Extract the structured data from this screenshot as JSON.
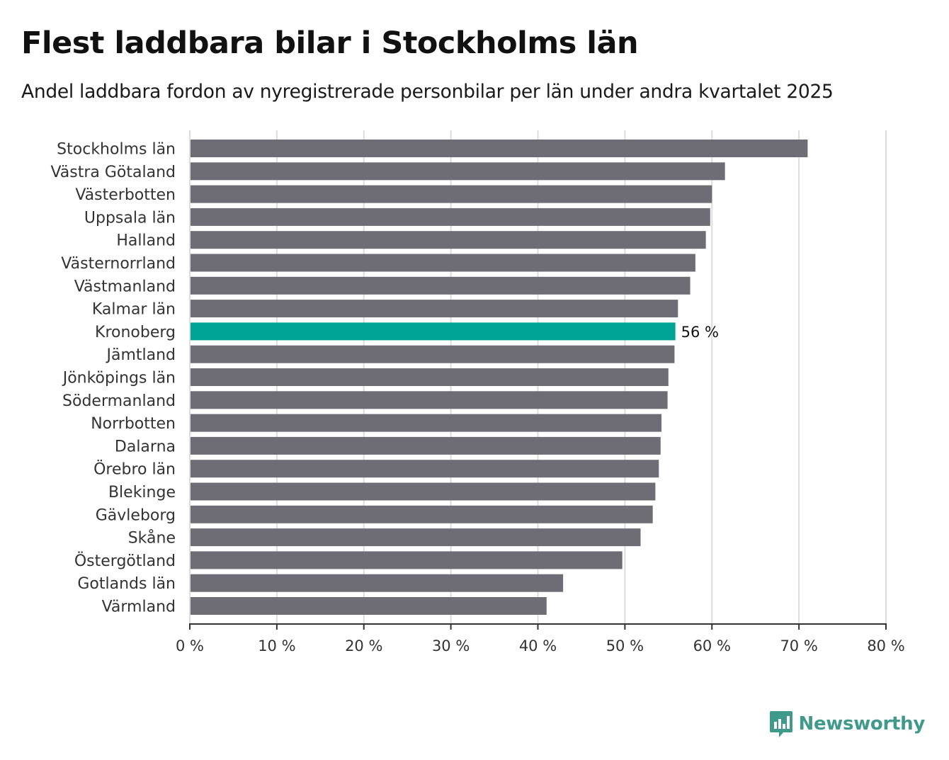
{
  "chart_data": {
    "type": "bar",
    "orientation": "horizontal",
    "title": "Flest laddbara bilar i Stockholms län",
    "subtitle": "Andel laddbara fordon av nyregistrerade personbilar per län under andra kvartalet 2025",
    "categories": [
      "Stockholms län",
      "Västra Götaland",
      "Västerbotten",
      "Uppsala län",
      "Halland",
      "Västernorrland",
      "Västmanland",
      "Kalmar län",
      "Kronoberg",
      "Jämtland",
      "Jönköpings län",
      "Södermanland",
      "Norrbotten",
      "Dalarna",
      "Örebro län",
      "Blekinge",
      "Gävleborg",
      "Skåne",
      "Östergötland",
      "Gotlands län",
      "Värmland"
    ],
    "values": [
      71.0,
      61.5,
      60.0,
      59.8,
      59.3,
      58.1,
      57.5,
      56.1,
      55.8,
      55.7,
      55.0,
      54.9,
      54.2,
      54.1,
      53.9,
      53.5,
      53.2,
      51.8,
      49.7,
      42.9,
      41.0
    ],
    "highlight": {
      "category": "Kronoberg",
      "label": "56 %"
    },
    "xlim": [
      0,
      80
    ],
    "xticks": [
      "0 %",
      "10 %",
      "20 %",
      "30 %",
      "40 %",
      "50 %",
      "60 %",
      "70 %",
      "80 %"
    ],
    "grid": true,
    "colors": {
      "bar": "#6e6d75",
      "highlight": "#00a497",
      "grid": "#dddddd",
      "axis": "#333333"
    }
  },
  "logo": {
    "text": "Newsworthy",
    "icon": "newsworthy-logo-icon",
    "color": "#3f9a8c"
  }
}
